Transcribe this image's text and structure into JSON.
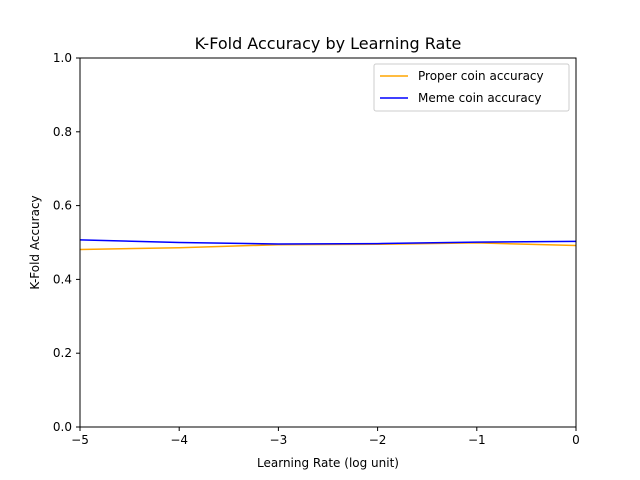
{
  "chart_data": {
    "type": "line",
    "title": "K-Fold Accuracy by Learning Rate",
    "xlabel": "Learning Rate (log unit)",
    "ylabel": "K-Fold Accuracy",
    "xlim": [
      -5,
      0
    ],
    "ylim": [
      0.0,
      1.0
    ],
    "x_ticks": [
      "−5",
      "−4",
      "−3",
      "−2",
      "−1",
      "0"
    ],
    "x_tick_values": [
      -5,
      -4,
      -3,
      -2,
      -1,
      0
    ],
    "y_ticks": [
      "0.0",
      "0.2",
      "0.4",
      "0.6",
      "0.8",
      "1.0"
    ],
    "y_tick_values": [
      0.0,
      0.2,
      0.4,
      0.6,
      0.8,
      1.0
    ],
    "grid": false,
    "legend_position": "top-right",
    "series": [
      {
        "name": "Proper coin accuracy",
        "color": "#ffa500",
        "x": [
          -5,
          -4,
          -3,
          -2,
          -1,
          0
        ],
        "y": [
          0.481,
          0.486,
          0.494,
          0.495,
          0.499,
          0.492
        ]
      },
      {
        "name": "Meme coin accuracy",
        "color": "#0000ff",
        "x": [
          -5,
          -4,
          -3,
          -2,
          -1,
          0
        ],
        "y": [
          0.507,
          0.5,
          0.496,
          0.497,
          0.501,
          0.503
        ]
      }
    ]
  }
}
